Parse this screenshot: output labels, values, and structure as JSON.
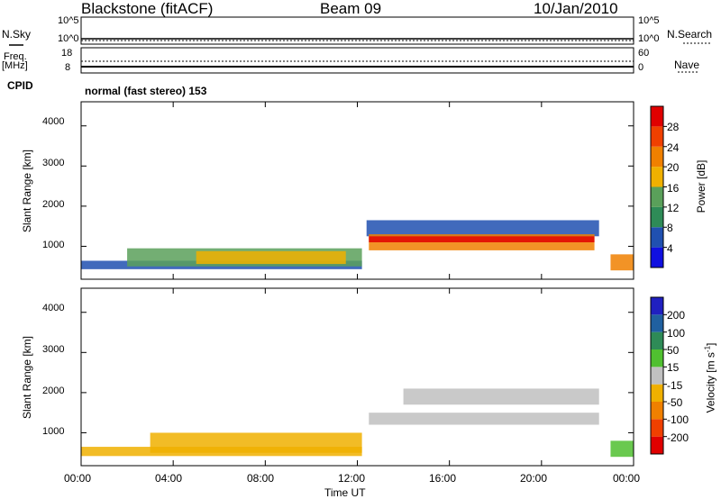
{
  "header": {
    "station": "Blackstone (fitACF)",
    "beam": "Beam 09",
    "date": "10/Jan/2010"
  },
  "top_panels": {
    "nsky_label": "N.Sky",
    "nsky_ticks": [
      "10^5",
      "10^0"
    ],
    "nsearch_label": "N.Search",
    "freq_label_1": "Freq.",
    "freq_label_2": "[MHz]",
    "freq_ticks": [
      "18",
      "8"
    ],
    "nave_label": "Nave",
    "nave_ticks": [
      "60",
      "0"
    ],
    "cpid_label": "CPID",
    "cpid_text": "normal (fast stereo) 153"
  },
  "chart_data": [
    {
      "type": "heatmap",
      "panel": "power",
      "ylabel": "Slant Range [km]",
      "yticks": [
        1000,
        2000,
        3000,
        4000
      ],
      "ylim": [
        180,
        4600
      ],
      "xlim": [
        0,
        24
      ],
      "colorbar": {
        "label": "Power [dB]",
        "ticks": [
          "4",
          "8",
          "12",
          "16",
          "20",
          "24",
          "28"
        ],
        "colors": [
          "#1010e0",
          "#2050b0",
          "#2e8b57",
          "#5aa05a",
          "#f0b000",
          "#f08000",
          "#f04000",
          "#e00000"
        ]
      },
      "regions": [
        {
          "t0": 0.0,
          "t1": 12.2,
          "r0": 430,
          "r1": 640,
          "color": "#2050b0"
        },
        {
          "t0": 2.0,
          "t1": 12.2,
          "r0": 500,
          "r1": 950,
          "color": "#5aa05a"
        },
        {
          "t0": 5.0,
          "t1": 11.5,
          "r0": 560,
          "r1": 880,
          "color": "#f0b000"
        },
        {
          "t0": 12.4,
          "t1": 22.5,
          "r0": 1250,
          "r1": 1650,
          "color": "#2050b0"
        },
        {
          "t0": 12.5,
          "t1": 22.3,
          "r0": 900,
          "r1": 1300,
          "color": "#f08000"
        },
        {
          "t0": 12.5,
          "t1": 22.3,
          "r0": 1100,
          "r1": 1250,
          "color": "#e00000"
        },
        {
          "t0": 23.0,
          "t1": 24.0,
          "r0": 400,
          "r1": 800,
          "color": "#f08000"
        }
      ]
    },
    {
      "type": "heatmap",
      "panel": "velocity",
      "ylabel": "Slant Range [km]",
      "yticks": [
        1000,
        2000,
        3000,
        4000
      ],
      "ylim": [
        180,
        4600
      ],
      "xlim": [
        0,
        24
      ],
      "xticks": [
        "00:00",
        "04:00",
        "08:00",
        "12:00",
        "16:00",
        "20:00",
        "00:00"
      ],
      "xlabel": "Time UT",
      "colorbar": {
        "label": "Velocity [m s^-1]",
        "ticks": [
          "200",
          "100",
          "50",
          "15",
          "-15",
          "-50",
          "-100",
          "-200"
        ],
        "colors": [
          "#2020c0",
          "#2060a0",
          "#2e8b57",
          "#50c030",
          "#c0c0c0",
          "#f0b000",
          "#f08000",
          "#f04000",
          "#e00000"
        ]
      },
      "regions": [
        {
          "t0": 0.0,
          "t1": 12.2,
          "r0": 420,
          "r1": 650,
          "color": "#f0b000"
        },
        {
          "t0": 3.0,
          "t1": 12.2,
          "r0": 500,
          "r1": 1000,
          "color": "#f0b000"
        },
        {
          "t0": 12.5,
          "t1": 22.5,
          "r0": 1200,
          "r1": 1500,
          "color": "#c0c0c0"
        },
        {
          "t0": 14.0,
          "t1": 22.5,
          "r0": 1700,
          "r1": 2100,
          "color": "#c0c0c0"
        },
        {
          "t0": 23.0,
          "t1": 24.0,
          "r0": 400,
          "r1": 800,
          "color": "#50c030"
        }
      ]
    }
  ]
}
